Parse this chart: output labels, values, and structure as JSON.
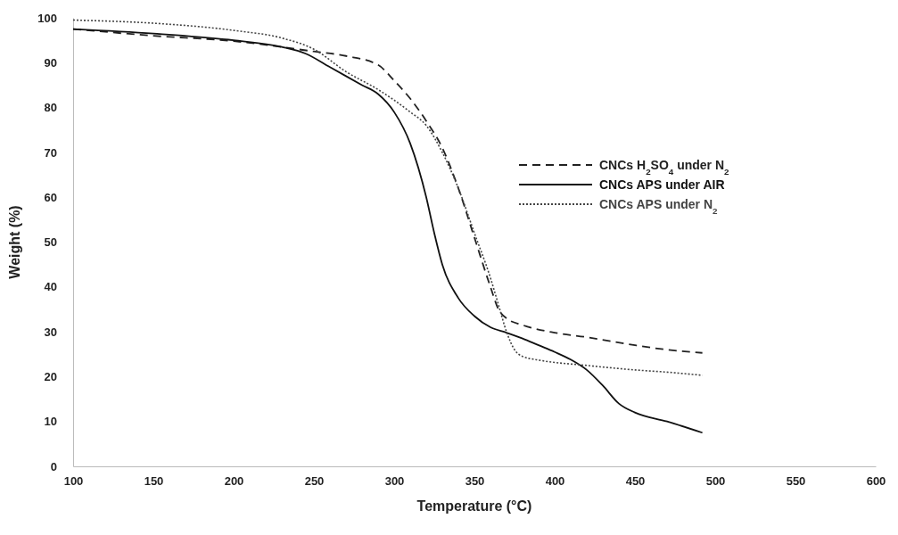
{
  "chart_data": {
    "type": "line",
    "xlabel": "Temperature (°C)",
    "ylabel": "Weight (%)",
    "xlim": [
      100,
      600
    ],
    "xticks": [
      100,
      150,
      200,
      250,
      300,
      350,
      400,
      450,
      500,
      550,
      600
    ],
    "ylim": [
      0,
      100
    ],
    "yticks": [
      0,
      10,
      20,
      30,
      40,
      50,
      60,
      70,
      80,
      90,
      100
    ],
    "grid": false,
    "legend": "right",
    "marker": "none",
    "series": [
      {
        "name": "CNCs H$_{2}$SO$_{4}$ under N$_{2}$",
        "color": "#222222",
        "line_style": "dashed",
        "x": [
          100,
          150,
          200,
          250,
          270,
          290,
          300,
          310,
          320,
          330,
          340,
          350,
          360,
          365,
          370,
          380,
          400,
          420,
          450,
          470,
          492
        ],
        "values": [
          97.5,
          96,
          94.8,
          92.5,
          91.5,
          89.5,
          86,
          82,
          77,
          71,
          62,
          51,
          40,
          35,
          33,
          31.5,
          29.8,
          28.8,
          27,
          26,
          25.3
        ]
      },
      {
        "name": "CNCs APS under AIR",
        "color": "#111111",
        "line_style": "solid",
        "x": [
          100,
          150,
          200,
          230,
          245,
          260,
          280,
          290,
          300,
          310,
          320,
          325,
          330,
          340,
          350,
          360,
          370,
          380,
          390,
          400,
          410,
          420,
          430,
          440,
          450,
          470,
          492
        ],
        "values": [
          97.5,
          96.5,
          95,
          93.5,
          92,
          89,
          85,
          83,
          79,
          72,
          60,
          52,
          45,
          37.5,
          33.5,
          31,
          29.8,
          28.5,
          27,
          25.5,
          23.8,
          21.5,
          18,
          14,
          12,
          10,
          7.5
        ]
      },
      {
        "name": "CNCs APS under N$_{2}$",
        "color": "#444444",
        "line_style": "dotted",
        "x": [
          100,
          150,
          200,
          230,
          250,
          270,
          290,
          310,
          320,
          330,
          340,
          350,
          360,
          365,
          370,
          375,
          380,
          390,
          420,
          450,
          470,
          492
        ],
        "values": [
          99.5,
          98.8,
          97.2,
          95.5,
          93,
          88,
          84,
          79,
          76,
          70,
          62,
          52,
          42,
          36,
          30,
          26,
          24.5,
          23.7,
          22.5,
          21.5,
          21,
          20.3
        ]
      }
    ]
  }
}
